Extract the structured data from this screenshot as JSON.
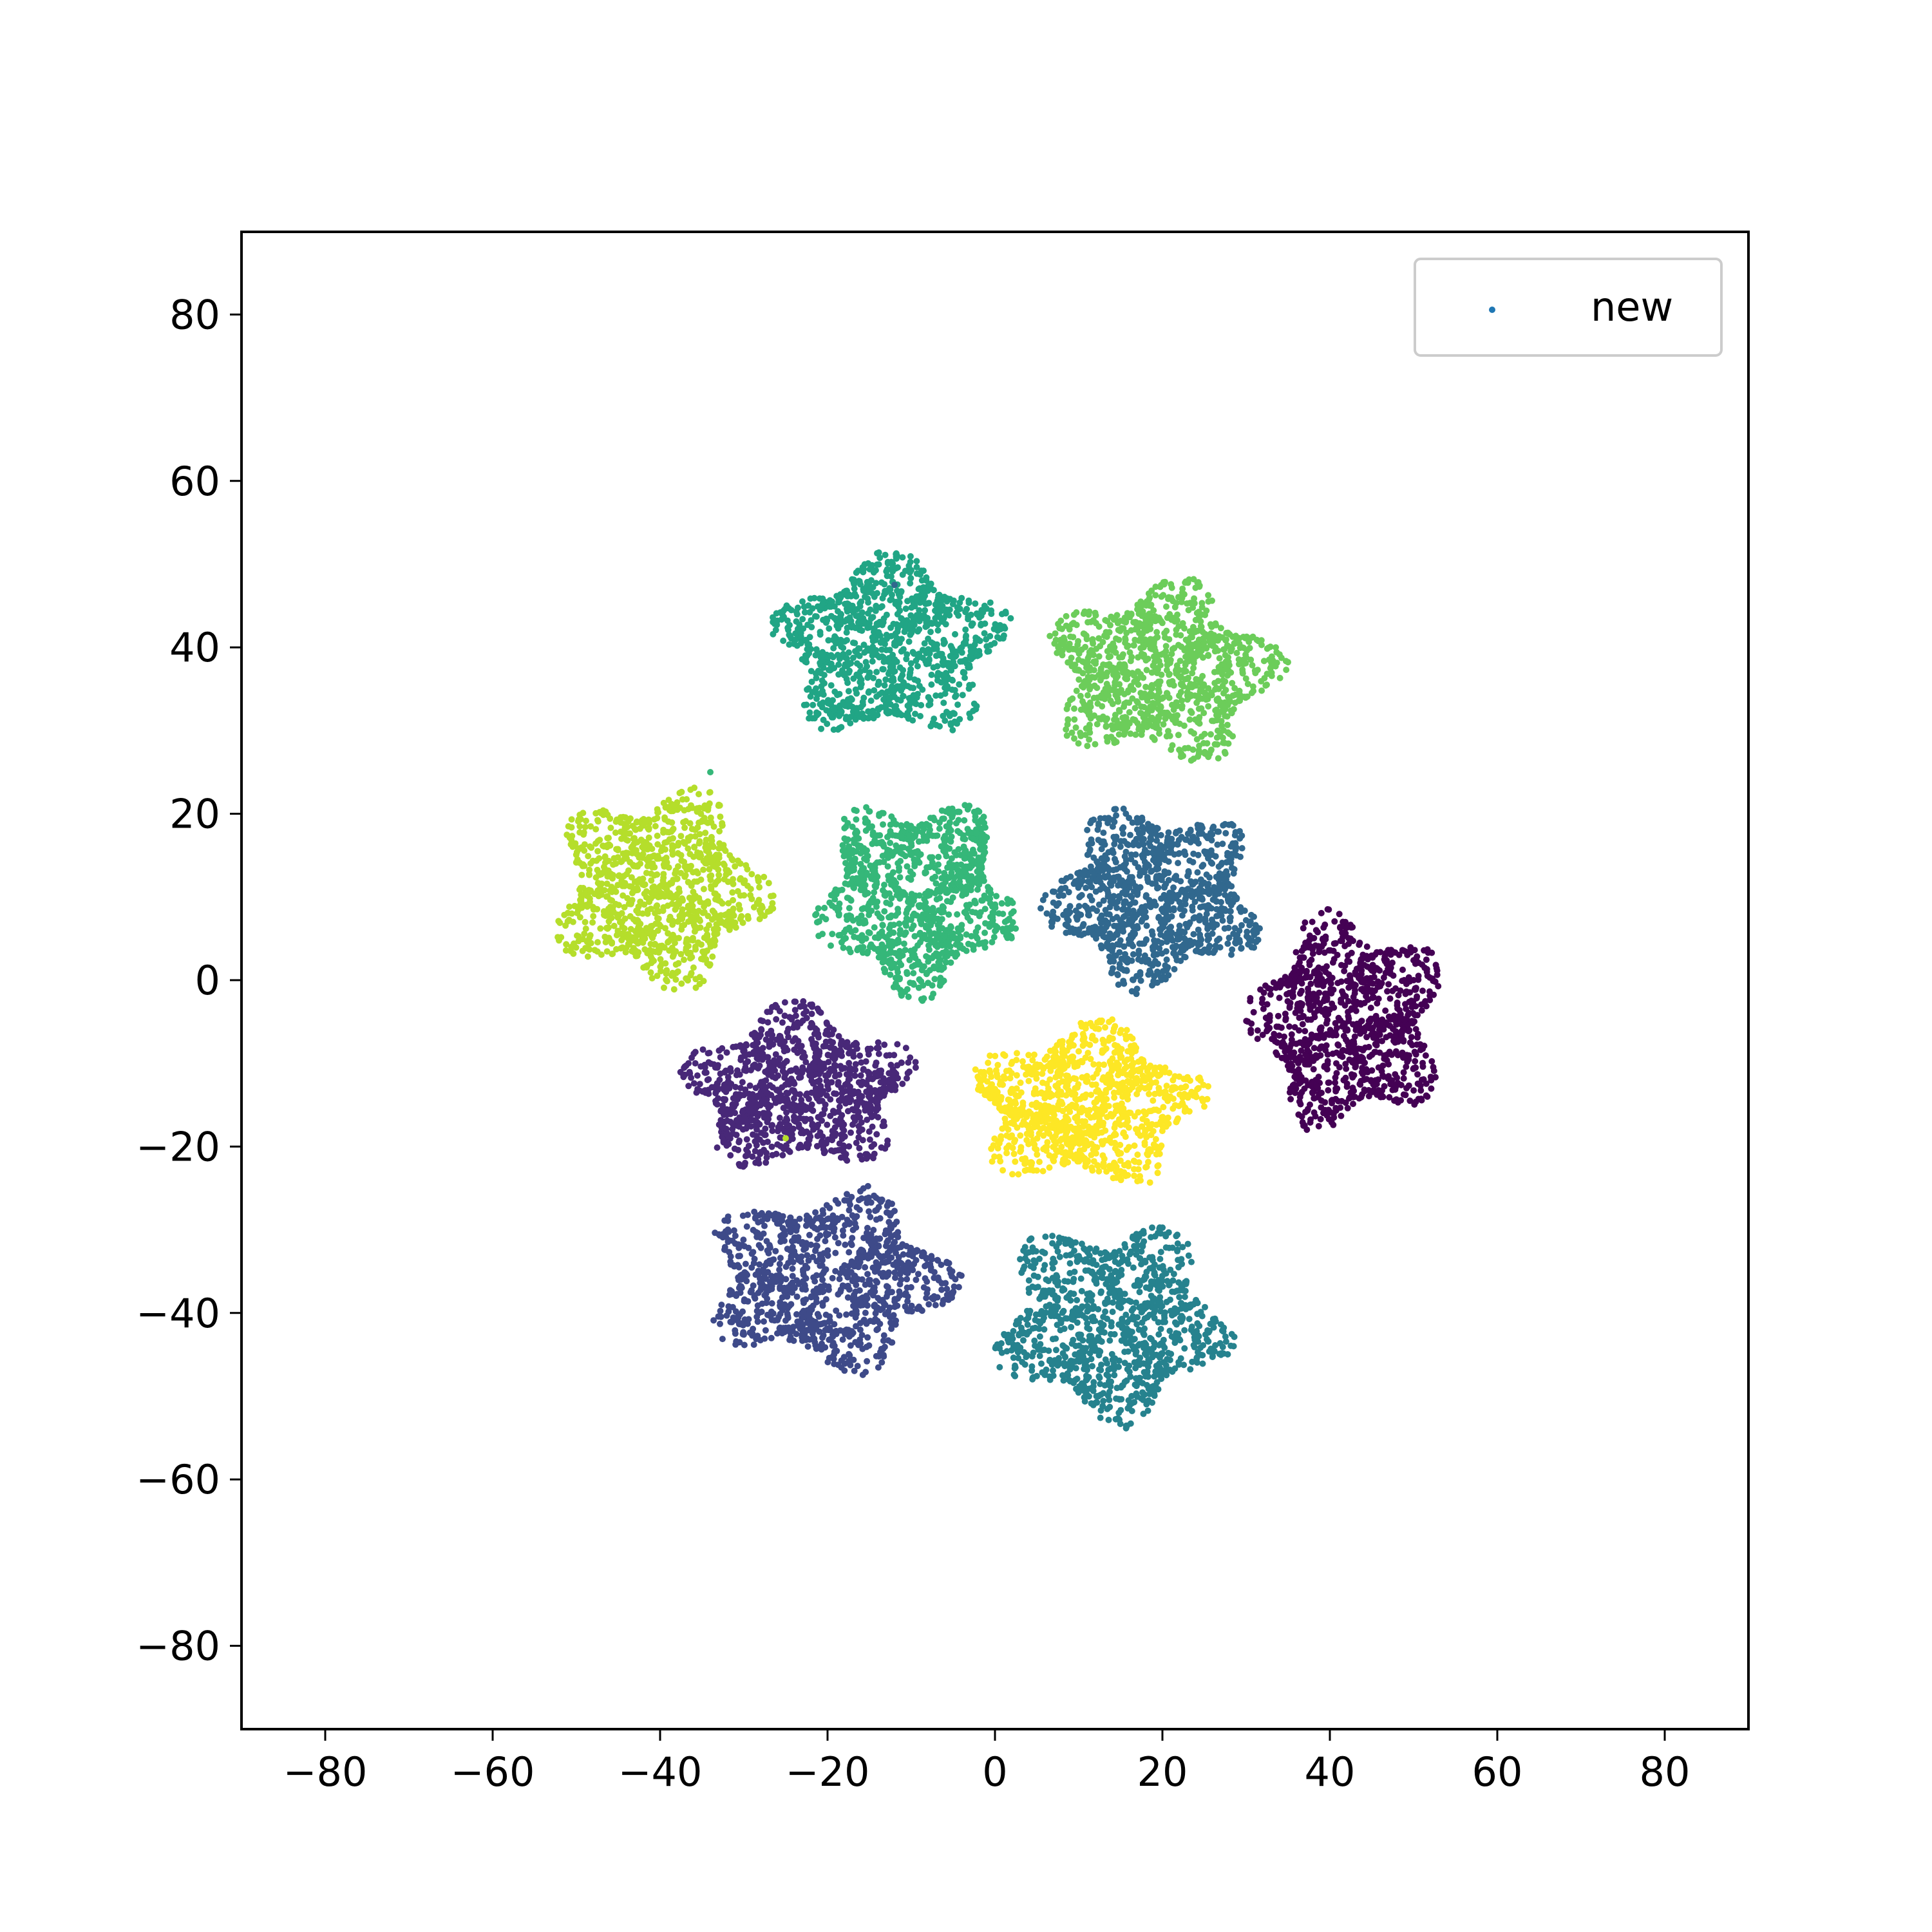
{
  "chart_data": {
    "type": "scatter",
    "title": "",
    "xlabel": "",
    "ylabel": "",
    "xlim": [
      -90,
      90
    ],
    "ylim": [
      -90,
      90
    ],
    "x_ticks": [
      -80,
      -60,
      -40,
      -20,
      0,
      20,
      40,
      60,
      80
    ],
    "y_ticks": [
      -80,
      -60,
      -40,
      -20,
      0,
      20,
      40,
      60,
      80
    ],
    "x_tick_labels": [
      "−80",
      "−60",
      "−40",
      "−20",
      "0",
      "20",
      "40",
      "60",
      "80"
    ],
    "y_tick_labels": [
      "−80",
      "−60",
      "−40",
      "−20",
      "0",
      "20",
      "40",
      "60",
      "80"
    ],
    "grid": false,
    "legend": {
      "position": "top-right",
      "entries": [
        {
          "label": "new",
          "color": "#1f77b4"
        }
      ]
    },
    "colormap": "viridis",
    "clusters": [
      {
        "center": [
          -12.5,
          40
        ],
        "radius": [
          14,
          11
        ],
        "count": 1000,
        "color": "#21a585"
      },
      {
        "center": [
          20,
          37
        ],
        "radius": [
          14,
          11
        ],
        "count": 1000,
        "color": "#6ccd5a"
      },
      {
        "center": [
          -40,
          11
        ],
        "radius": [
          13,
          12
        ],
        "count": 1000,
        "color": "#b5de2b"
      },
      {
        "center": [
          -9.5,
          10
        ],
        "radius": [
          12,
          12
        ],
        "count": 1000,
        "color": "#35b779"
      },
      {
        "center": [
          19,
          10
        ],
        "radius": [
          13,
          11
        ],
        "count": 1000,
        "color": "#31688e"
      },
      {
        "center": [
          42,
          -5
        ],
        "radius": [
          12,
          13
        ],
        "count": 1000,
        "color": "#440154"
      },
      {
        "center": [
          -23.5,
          -13
        ],
        "radius": [
          14,
          10
        ],
        "count": 1000,
        "color": "#482878"
      },
      {
        "center": [
          11,
          -15
        ],
        "radius": [
          14,
          10
        ],
        "count": 1000,
        "color": "#fde725"
      },
      {
        "center": [
          -20,
          -36
        ],
        "radius": [
          15,
          11
        ],
        "count": 1000,
        "color": "#3e4a89"
      },
      {
        "center": [
          14,
          -41
        ],
        "radius": [
          14,
          12
        ],
        "count": 1000,
        "color": "#26828e"
      }
    ],
    "outliers": [
      {
        "x": -25,
        "y": -19,
        "color": "#b5de2b"
      },
      {
        "x": -12,
        "y": 47.5,
        "color": "#31688e"
      },
      {
        "x": -34,
        "y": 25,
        "color": "#35b779"
      }
    ]
  }
}
